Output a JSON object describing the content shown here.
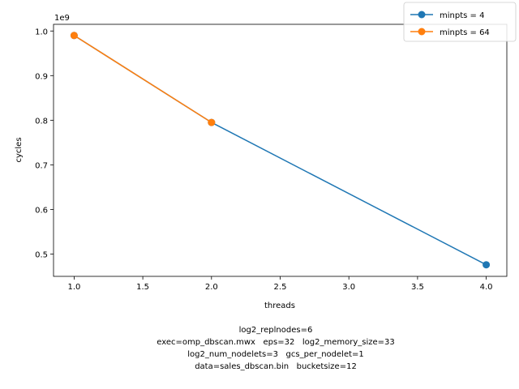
{
  "chart_data": {
    "type": "line",
    "xlabel": "threads",
    "ylabel": "cycles",
    "offset_label": "1e9",
    "xlim": [
      0.85,
      4.15
    ],
    "ylim": [
      0.45,
      1.015
    ],
    "x_ticks": [
      "1.0",
      "1.5",
      "2.0",
      "2.5",
      "3.0",
      "3.5",
      "4.0"
    ],
    "y_ticks": [
      "0.5",
      "0.6",
      "0.7",
      "0.8",
      "0.9",
      "1.0"
    ],
    "legend_position": "top-right",
    "series": [
      {
        "name": "minpts = 4",
        "color": "#1f77b4",
        "x": [
          1,
          2,
          4
        ],
        "y": [
          0.99,
          0.795,
          0.476
        ]
      },
      {
        "name": "minpts = 64",
        "color": "#ff7f0e",
        "x": [
          1,
          2
        ],
        "y": [
          0.99,
          0.795
        ]
      }
    ],
    "caption_lines": [
      "log2_replnodes=6",
      "exec=omp_dbscan.mwx   eps=32   log2_memory_size=33",
      "log2_num_nodelets=3   gcs_per_nodelet=1",
      "data=sales_dbscan.bin   bucketsize=12"
    ]
  }
}
